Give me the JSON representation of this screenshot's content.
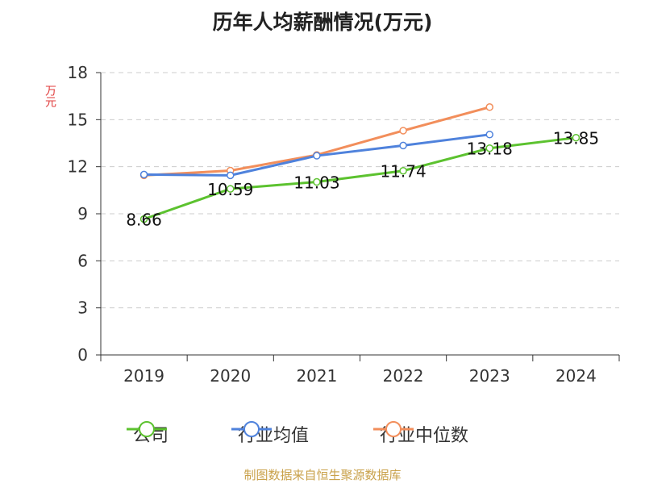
{
  "title": "历年人均薪酬情况(万元)",
  "footer": "制图数据来自恒生聚源数据库",
  "chart_data": {
    "type": "line",
    "title": "历年人均薪酬情况(万元)",
    "ylabel": "万元",
    "xlabel": "",
    "categories": [
      "2019",
      "2020",
      "2021",
      "2022",
      "2023",
      "2024"
    ],
    "ylim": [
      0,
      18
    ],
    "yticks": [
      0,
      3,
      6,
      9,
      12,
      15,
      18
    ],
    "grid": true,
    "legend_position": "bottom",
    "series": [
      {
        "name": "公司",
        "color": "#5cc22f",
        "values": [
          8.66,
          10.59,
          11.03,
          11.74,
          13.18,
          13.85
        ],
        "show_labels": true
      },
      {
        "name": "行业均值",
        "color": "#4f82dc",
        "values": [
          11.5,
          11.45,
          12.7,
          13.35,
          14.05,
          null
        ],
        "show_labels": false
      },
      {
        "name": "行业中位数",
        "color": "#f28e5b",
        "values": [
          11.45,
          11.75,
          12.75,
          14.3,
          15.8,
          null
        ],
        "show_labels": false
      }
    ]
  }
}
